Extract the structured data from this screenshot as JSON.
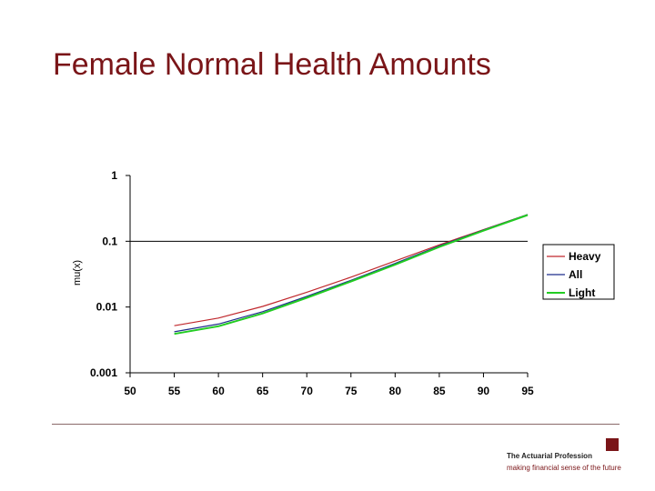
{
  "slide": {
    "title": "Female Normal Health Amounts",
    "footer_name": "The Actuarial Profession",
    "footer_tagline": "making financial sense of the future"
  },
  "colors": {
    "title": "#7a1518",
    "brand": "#7a1518"
  },
  "chart_data": {
    "type": "line",
    "title": "",
    "xlabel": "",
    "ylabel": "mu(x)",
    "yscale": "log",
    "xlim": [
      50,
      95
    ],
    "ylim": [
      0.001,
      1
    ],
    "x_ticks": [
      "50",
      "55",
      "60",
      "65",
      "70",
      "75",
      "80",
      "85",
      "90",
      "95"
    ],
    "y_ticks": [
      "1",
      "0.1",
      "0.01",
      "0.001"
    ],
    "gridlines_y": [
      0.1
    ],
    "legend": "right",
    "x": [
      55,
      60,
      65,
      70,
      75,
      80,
      85,
      90,
      95
    ],
    "series": [
      {
        "name": "Heavy",
        "color": "#c0282d",
        "values": [
          0.0052,
          0.0068,
          0.0102,
          0.0168,
          0.0285,
          0.05,
          0.088,
          0.15,
          0.255
        ]
      },
      {
        "name": "All",
        "color": "#1f2e8c",
        "values": [
          0.0042,
          0.0055,
          0.0085,
          0.0145,
          0.0255,
          0.046,
          0.085,
          0.148,
          0.255
        ]
      },
      {
        "name": "Light",
        "color": "#22cc22",
        "values": [
          0.0039,
          0.0051,
          0.008,
          0.0138,
          0.0245,
          0.044,
          0.082,
          0.145,
          0.25
        ]
      }
    ]
  }
}
